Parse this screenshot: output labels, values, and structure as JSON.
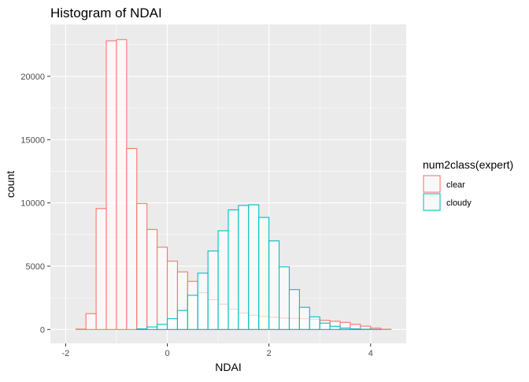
{
  "chart_data": {
    "type": "bar",
    "title": "Histogram of NDAI",
    "xlabel": "NDAI",
    "ylabel": "count",
    "xlim": [
      -2.3,
      4.7
    ],
    "ylim": [
      -1100,
      24100
    ],
    "x_ticks": [
      -2,
      0,
      2,
      4
    ],
    "y_ticks": [
      0,
      5000,
      10000,
      15000,
      20000
    ],
    "x_tick_labels": [
      "-2",
      "0",
      "2",
      "4"
    ],
    "y_tick_labels": [
      "0",
      "5000",
      "10000",
      "15000",
      "20000"
    ],
    "grid": true,
    "legend": {
      "title": "num2class(expert)",
      "position": "right",
      "entries": [
        {
          "label": "clear",
          "color": "#F8766D"
        },
        {
          "label": "cloudy",
          "color": "#00BFC4"
        }
      ]
    },
    "bin_width": 0.2,
    "bin_starts": [
      -2.0,
      -1.8,
      -1.6,
      -1.4,
      -1.2,
      -1.0,
      -0.8,
      -0.6,
      -0.4,
      -0.2,
      0.0,
      0.2,
      0.4,
      0.6,
      0.8,
      1.0,
      1.2,
      1.4,
      1.6,
      1.8,
      2.0,
      2.2,
      2.4,
      2.6,
      2.8,
      3.0,
      3.2,
      3.4,
      3.6,
      3.8,
      4.0,
      4.2
    ],
    "series": [
      {
        "name": "clear",
        "color": "#F8766D",
        "values": [
          0,
          30,
          1250,
          9550,
          22800,
          22900,
          14300,
          9950,
          7900,
          6500,
          5400,
          4550,
          3800,
          2900,
          2350,
          2000,
          1600,
          1300,
          1120,
          1020,
          960,
          900,
          870,
          850,
          800,
          720,
          650,
          560,
          410,
          260,
          110,
          20
        ]
      },
      {
        "name": "cloudy",
        "color": "#00BFC4",
        "values": [
          0,
          0,
          0,
          0,
          0,
          0,
          0,
          50,
          200,
          400,
          850,
          1500,
          2700,
          4450,
          6200,
          7800,
          9450,
          9800,
          9850,
          8850,
          7000,
          4950,
          3150,
          1750,
          1000,
          500,
          250,
          110,
          50,
          20,
          5,
          0
        ]
      }
    ]
  }
}
